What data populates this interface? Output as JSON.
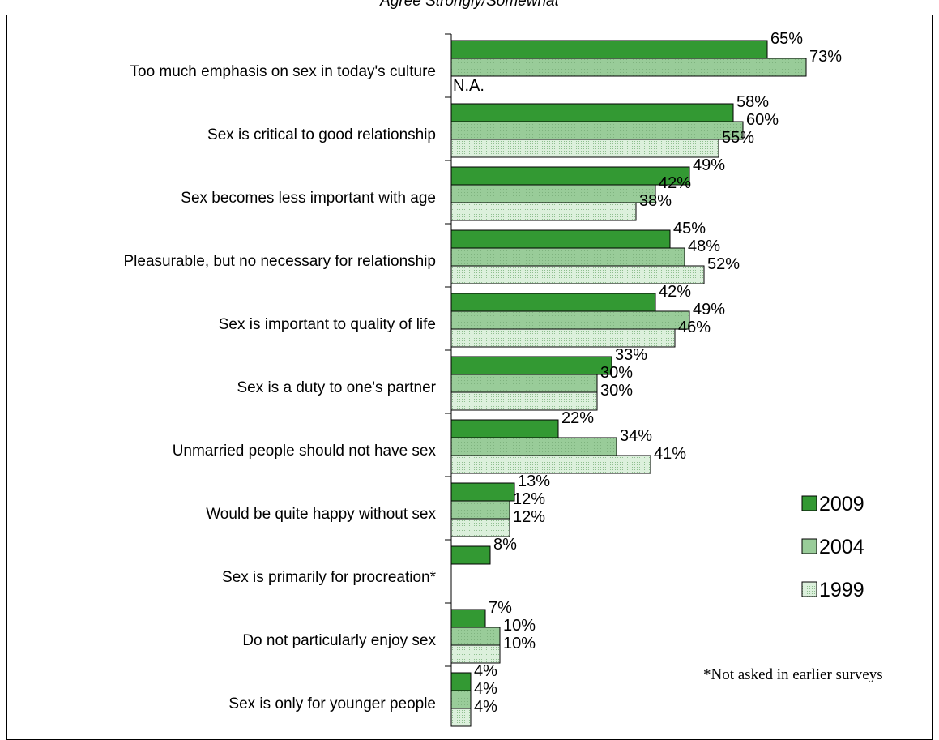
{
  "chart_data": {
    "type": "bar",
    "orientation": "horizontal",
    "title": "Agree Strongly/Somewhat",
    "categories": [
      "Too much emphasis on sex in today's culture",
      "Sex is critical to good relationship",
      "Sex becomes less important with age",
      "Pleasurable, but no necessary for relationship",
      "Sex is important to quality of life",
      "Sex is a duty to one's partner",
      "Unmarried people should not have sex",
      "Would be quite happy without sex",
      "Sex is primarily for procreation*",
      "Do not particularly enjoy sex",
      "Sex is only for younger people"
    ],
    "series": [
      {
        "name": "2009",
        "values": [
          65,
          58,
          49,
          45,
          42,
          33,
          22,
          13,
          8,
          7,
          4
        ],
        "labels": [
          "65%",
          "58%",
          "49%",
          "45%",
          "42%",
          "33%",
          "22%",
          "13%",
          "8%",
          "7%",
          "4%"
        ]
      },
      {
        "name": "2004",
        "values": [
          73,
          60,
          42,
          48,
          49,
          30,
          34,
          12,
          null,
          10,
          4
        ],
        "labels": [
          "73%",
          "60%",
          "42%",
          "48%",
          "49%",
          "30%",
          "34%",
          "12%",
          "",
          "10%",
          "4%"
        ]
      },
      {
        "name": "1999",
        "values": [
          null,
          55,
          38,
          52,
          46,
          30,
          41,
          12,
          null,
          10,
          4
        ],
        "labels": [
          "N.A.",
          "55%",
          "38%",
          "52%",
          "46%",
          "30%",
          "41%",
          "12%",
          "",
          "10%",
          "4%"
        ]
      }
    ],
    "xlim": [
      0,
      100
    ],
    "legend_placement": "right",
    "grid": false,
    "annotation": "*Not asked in earlier surveys",
    "colors": {
      "2009": "#339933",
      "2004": "#99cc99",
      "1999": "#ccebcc"
    }
  }
}
